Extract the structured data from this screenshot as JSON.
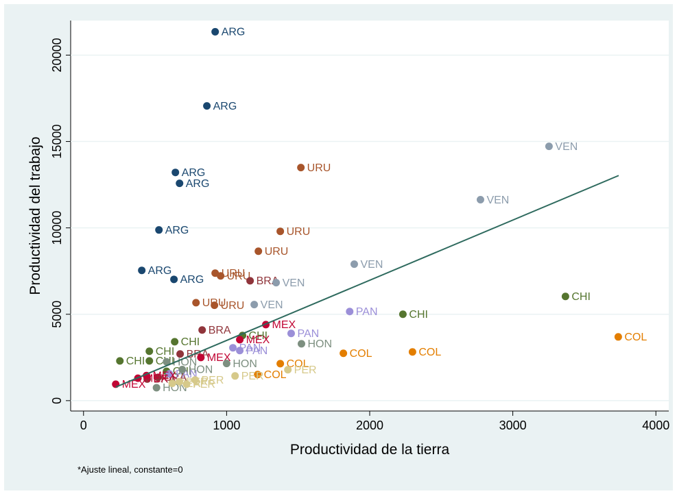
{
  "chart_data": {
    "type": "scatter",
    "x_label": "Productividad de la tierra",
    "y_label": "Productividad del trabajo",
    "note": "*Ajuste lineal, constante=0",
    "xlim": [
      -90,
      4090
    ],
    "ylim": [
      -600,
      22000
    ],
    "xticks": [
      0,
      1000,
      2000,
      3000,
      4000
    ],
    "yticks": [
      0,
      5000,
      10000,
      15000,
      20000
    ],
    "grid": true,
    "series": [
      {
        "name": "ARG",
        "color": "#1a476f",
        "x": [
          920,
          862,
          642,
          671,
          527,
          407,
          632
        ],
        "y": [
          21350,
          17060,
          13210,
          12580,
          9880,
          7540,
          7020
        ]
      },
      {
        "name": "URU",
        "color": "#a8552b",
        "x": [
          1519,
          1375,
          1222,
          920,
          958,
          786,
          915
        ],
        "y": [
          13490,
          9800,
          8650,
          7380,
          7220,
          5670,
          5520
        ]
      },
      {
        "name": "BRA",
        "color": "#90353b",
        "x": [
          1164,
          829,
          675,
          520,
          445
        ],
        "y": [
          6940,
          4090,
          2700,
          1350,
          1250
        ]
      },
      {
        "name": "VEN",
        "color": "#8c9cac",
        "x": [
          3253,
          2774,
          1892,
          1346,
          1193
        ],
        "y": [
          14720,
          11630,
          7900,
          6830,
          5560
        ]
      },
      {
        "name": "CHI",
        "color": "#55752f",
        "x": [
          3368,
          2232,
          1111,
          637,
          460,
          254,
          460,
          580
        ],
        "y": [
          6030,
          5000,
          3770,
          3410,
          2860,
          2300,
          2300,
          1700
        ]
      },
      {
        "name": "PAN",
        "color": "#9b8fd8",
        "x": [
          1860,
          1451,
          1044,
          1092,
          600
        ],
        "y": [
          5160,
          3890,
          3060,
          2900,
          1550
        ]
      },
      {
        "name": "MEX",
        "color": "#c10534",
        "x": [
          1274,
          1092,
          225,
          820,
          440,
          380
        ],
        "y": [
          4400,
          3530,
          950,
          2500,
          1450,
          1300
        ]
      },
      {
        "name": "HON",
        "color": "#7d8f80",
        "x": [
          1523,
          1000,
          510,
          580,
          690
        ],
        "y": [
          3290,
          2150,
          750,
          2250,
          1800
        ]
      },
      {
        "name": "COL",
        "color": "#e37e00",
        "x": [
          3737,
          2299,
          1816,
          1375,
          1217
        ],
        "y": [
          3690,
          2820,
          2740,
          2140,
          1510
        ]
      },
      {
        "name": "PER",
        "color": "#d6c98a",
        "x": [
          1428,
          1059,
          670,
          780,
          620,
          720
        ],
        "y": [
          1790,
          1430,
          1100,
          1200,
          1000,
          950
        ]
      }
    ],
    "fit": {
      "color": "#2e6a5e",
      "x": [
        225,
        3740
      ],
      "y": [
        784,
        13030
      ]
    }
  }
}
